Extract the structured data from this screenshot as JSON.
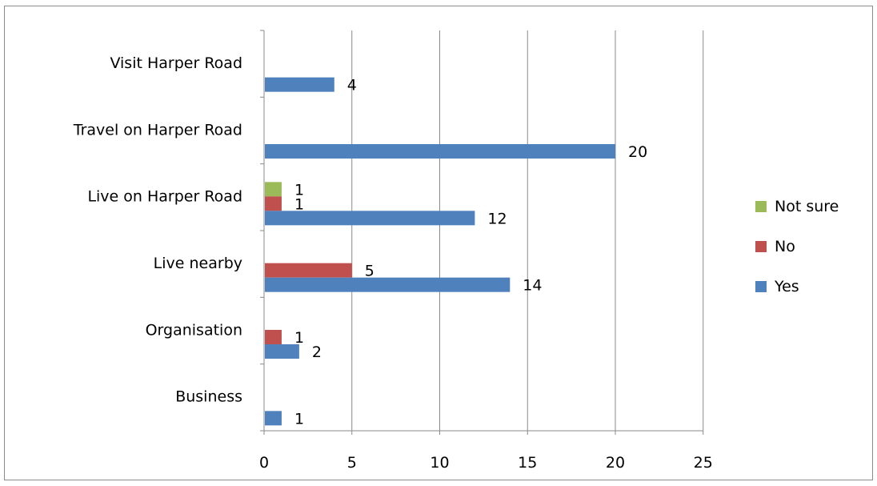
{
  "chart_data": {
    "type": "bar",
    "orientation": "horizontal",
    "categories": [
      "Visit Harper Road",
      "Travel on Harper Road",
      "Live on Harper Road",
      "Live nearby",
      "Organisation",
      "Business"
    ],
    "series": [
      {
        "name": "Not sure",
        "color": "#9bbb59",
        "values": [
          null,
          null,
          1,
          null,
          null,
          null
        ]
      },
      {
        "name": "No",
        "color": "#c0504d",
        "values": [
          null,
          null,
          1,
          5,
          1,
          null
        ]
      },
      {
        "name": "Yes",
        "color": "#4f81bd",
        "values": [
          4,
          20,
          12,
          14,
          2,
          1
        ]
      }
    ],
    "xlim": [
      0,
      25
    ],
    "xticks": [
      0,
      5,
      10,
      15,
      20,
      25
    ],
    "grid": "vertical",
    "legend": "right",
    "data_labels": true
  }
}
